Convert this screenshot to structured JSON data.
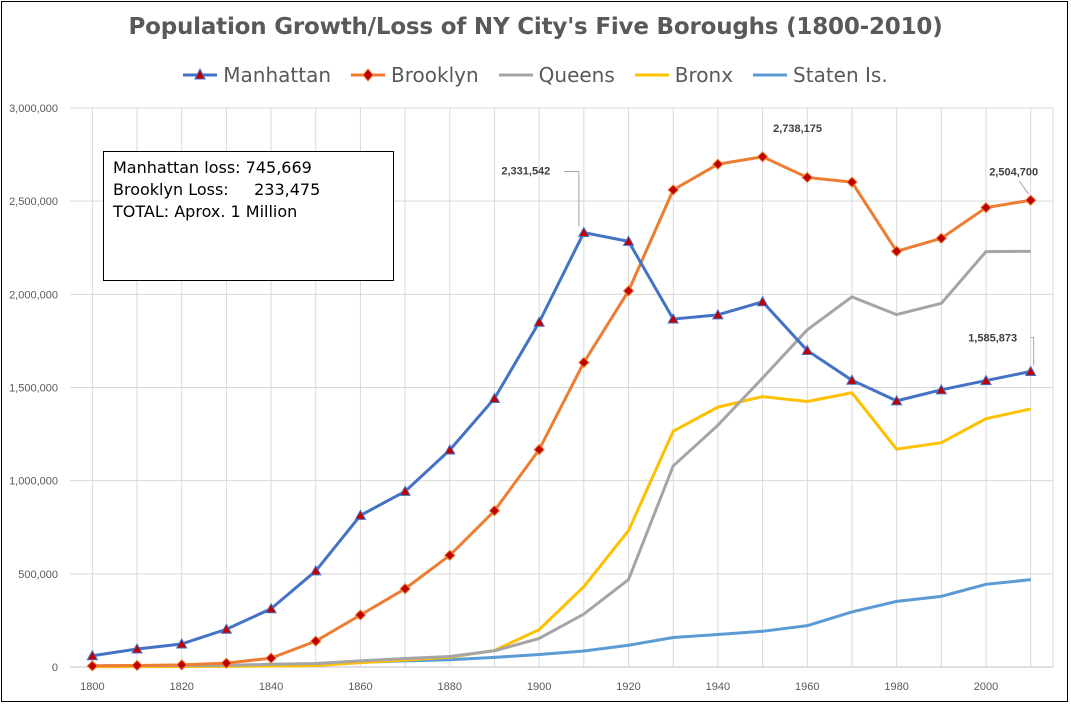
{
  "chart_data": {
    "type": "line",
    "title": "Population Growth/Loss of NY City's  Five Boroughs (1800-2010)",
    "x": [
      1800,
      1810,
      1820,
      1830,
      1840,
      1850,
      1860,
      1870,
      1880,
      1890,
      1900,
      1910,
      1920,
      1930,
      1940,
      1950,
      1960,
      1970,
      1980,
      1990,
      2000,
      2010
    ],
    "x_ticks": [
      "1800",
      "1820",
      "1840",
      "1860",
      "1880",
      "1900",
      "1920",
      "1940",
      "1960",
      "1980",
      "2000"
    ],
    "y_ticks": [
      "0",
      "500,000",
      "1,000,000",
      "1,500,000",
      "2,000,000",
      "2,500,000",
      "3,000,000"
    ],
    "xlim": [
      1795,
      2015
    ],
    "ylim": [
      0,
      3000000
    ],
    "grid": true,
    "legend_position": "top",
    "series": [
      {
        "name": "Manhattan",
        "color": "#4472C4",
        "marker": "triangle",
        "marker_color": "#C00000",
        "values": [
          60515,
          96373,
          123706,
          202589,
          312710,
          515547,
          813669,
          942292,
          1164673,
          1441216,
          1850093,
          2331542,
          2284103,
          1867312,
          1889924,
          1960101,
          1698281,
          1539233,
          1428285,
          1487536,
          1537195,
          1585873
        ]
      },
      {
        "name": "Brooklyn",
        "color": "#ED7D31",
        "marker": "diamond",
        "marker_color": "#C00000",
        "values": [
          5740,
          8303,
          11187,
          20535,
          47613,
          138882,
          279122,
          419921,
          599495,
          838547,
          1166582,
          1634351,
          2018356,
          2560401,
          2698285,
          2738175,
          2627319,
          2602012,
          2230936,
          2300664,
          2465326,
          2504700
        ]
      },
      {
        "name": "Queens",
        "color": "#A5A5A5",
        "values": [
          6642,
          7444,
          8246,
          9049,
          14480,
          18593,
          32903,
          45468,
          56559,
          87050,
          152999,
          284041,
          469042,
          1079129,
          1297634,
          1550849,
          1809578,
          1986473,
          1891325,
          1951598,
          2229379,
          2230722
        ]
      },
      {
        "name": "Bronx",
        "color": "#FFC000",
        "values": [
          1755,
          2267,
          2782,
          3023,
          5346,
          8032,
          23593,
          37393,
          51980,
          88908,
          200507,
          430980,
          732016,
          1265258,
          1394711,
          1451277,
          1424815,
          1471701,
          1168972,
          1203789,
          1332650,
          1385108
        ]
      },
      {
        "name": "Staten Is.",
        "color": "#5B9BD5",
        "values": [
          3666,
          5347,
          6135,
          7082,
          10965,
          15061,
          25492,
          33029,
          38991,
          51693,
          67021,
          85969,
          116531,
          158346,
          174441,
          191555,
          221991,
          295443,
          352121,
          378977,
          443728,
          468730
        ]
      }
    ],
    "data_labels": [
      {
        "text": "2,331,542",
        "series": "Manhattan",
        "x": 1910
      },
      {
        "text": "2,738,175",
        "series": "Brooklyn",
        "x": 1950
      },
      {
        "text": "2,504,700",
        "series": "Brooklyn",
        "x": 2010
      },
      {
        "text": "1,585,873",
        "series": "Manhattan",
        "x": 2010
      }
    ]
  },
  "annotation": {
    "line1": "Manhattan loss: 745,669",
    "line2": "Brooklyn Loss:     233,475",
    "line3": "TOTAL: Aprox. 1 Million"
  }
}
